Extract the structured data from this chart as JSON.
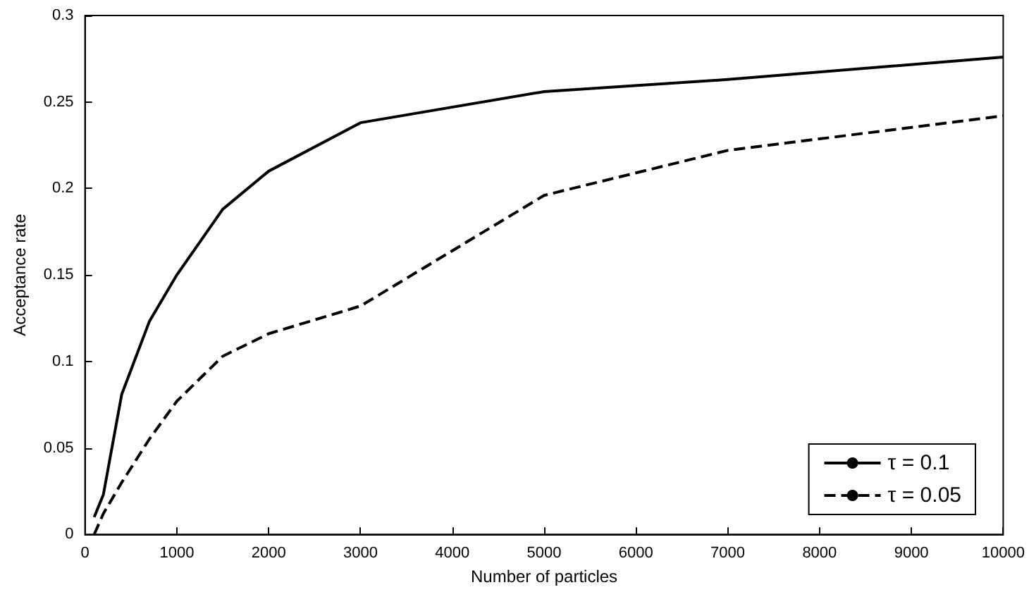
{
  "chart_data": {
    "type": "line",
    "xlabel": "Number of particles",
    "ylabel": "Acceptance rate",
    "series": [
      {
        "name": "τ = 0.1",
        "color": "#000000",
        "line_style": "solid",
        "x": [
          100,
          200,
          400,
          700,
          1000,
          1500,
          2000,
          3000,
          5000,
          7000,
          10000
        ],
        "values": [
          0.01,
          0.023,
          0.081,
          0.123,
          0.15,
          0.188,
          0.21,
          0.238,
          0.256,
          0.263,
          0.276
        ]
      },
      {
        "name": "τ = 0.05",
        "color": "#000000",
        "line_style": "dashed",
        "x": [
          100,
          200,
          400,
          700,
          1000,
          1500,
          2000,
          3000,
          5000,
          7000,
          10000
        ],
        "values": [
          0.0,
          0.012,
          0.03,
          0.055,
          0.077,
          0.103,
          0.116,
          0.132,
          0.196,
          0.222,
          0.242
        ]
      }
    ],
    "xlim": [
      0,
      10000
    ],
    "xticks": [
      0,
      1000,
      2000,
      3000,
      4000,
      5000,
      6000,
      7000,
      8000,
      9000,
      10000
    ],
    "ylim": [
      0,
      0.3
    ],
    "yticks": [
      0,
      0.05,
      0.1,
      0.15,
      0.2,
      0.25,
      0.3
    ],
    "grid": false,
    "legend": "bottom right",
    "marker": "none"
  }
}
